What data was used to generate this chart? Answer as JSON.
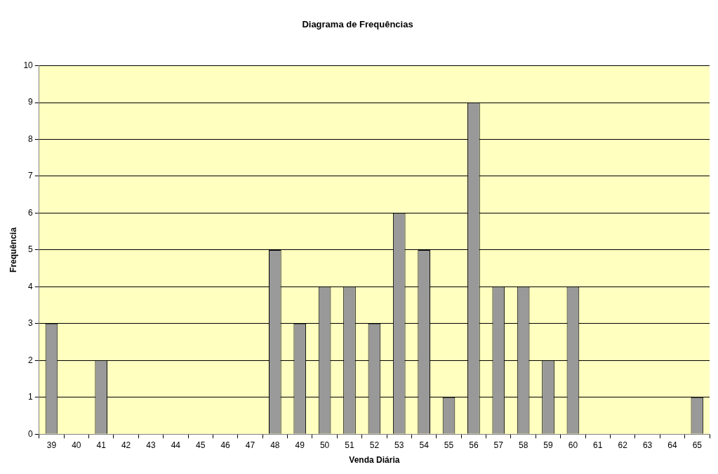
{
  "chart_data": {
    "type": "bar",
    "title": "Diagrama de Frequências",
    "xlabel": "Venda Diária",
    "ylabel": "Frequência",
    "categories": [
      "39",
      "40",
      "41",
      "42",
      "43",
      "44",
      "45",
      "46",
      "47",
      "48",
      "49",
      "50",
      "51",
      "52",
      "53",
      "54",
      "55",
      "56",
      "57",
      "58",
      "59",
      "60",
      "61",
      "62",
      "63",
      "64",
      "65"
    ],
    "values": [
      3,
      0,
      2,
      0,
      0,
      0,
      0,
      0,
      0,
      5,
      3,
      4,
      4,
      3,
      6,
      5,
      1,
      9,
      4,
      4,
      2,
      4,
      0,
      0,
      0,
      0,
      1
    ],
    "color": "#999999",
    "ylim": [
      0,
      10
    ],
    "yticks": [
      0,
      1,
      2,
      3,
      4,
      5,
      6,
      7,
      8,
      9,
      10
    ],
    "grid": "y",
    "legend": false
  }
}
